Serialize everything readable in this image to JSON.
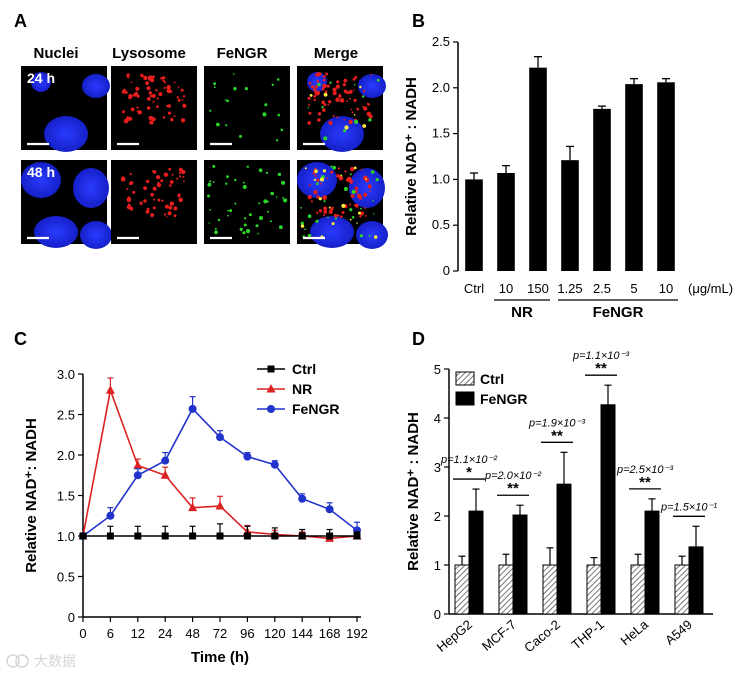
{
  "panels": {
    "a": {
      "letter": "A",
      "column_headers": [
        "Nuclei",
        "Lysosome",
        "FeNGR",
        "Merge"
      ],
      "row_labels": [
        "24 h",
        "48 h"
      ]
    },
    "b": {
      "letter": "B"
    },
    "c": {
      "letter": "C"
    },
    "d": {
      "letter": "D"
    }
  },
  "watermark": "大数据",
  "chart_data": [
    {
      "panel": "B",
      "type": "bar",
      "ylabel": "Relative NAD⁺ : NADH",
      "ylim": [
        0,
        2.5
      ],
      "yticks": [
        "0",
        "0.5",
        "1.0",
        "1.5",
        "2.0",
        "2.5"
      ],
      "categories": [
        "Ctrl",
        "10",
        "150",
        "1.25",
        "2.5",
        "5",
        "10"
      ],
      "values": [
        1.0,
        1.07,
        2.22,
        1.21,
        1.77,
        2.04,
        2.06
      ],
      "errors": [
        0.07,
        0.08,
        0.12,
        0.15,
        0.03,
        0.06,
        0.04
      ],
      "unit_label": "(μg/mL)",
      "groups": [
        {
          "label": "NR",
          "from": 1,
          "to": 2
        },
        {
          "label": "FeNGR",
          "from": 3,
          "to": 6
        }
      ]
    },
    {
      "panel": "C",
      "type": "line",
      "xlabel": "Time (h)",
      "ylabel": "Relative NAD⁺: NADH",
      "ylim": [
        0,
        3.0
      ],
      "yticks": [
        "0",
        "0.5",
        "1.0",
        "1.5",
        "2.0",
        "2.5",
        "3.0"
      ],
      "x": [
        "0",
        "6",
        "12",
        "24",
        "48",
        "72",
        "96",
        "120",
        "144",
        "168",
        "192"
      ],
      "series": [
        {
          "name": "Ctrl",
          "color": "#000000",
          "marker": "square",
          "values": [
            1.0,
            1.0,
            1.0,
            1.0,
            1.0,
            1.0,
            1.0,
            1.0,
            1.0,
            1.0,
            1.0
          ],
          "errors": [
            0.03,
            0.12,
            0.12,
            0.12,
            0.12,
            0.15,
            0.12,
            0.1,
            0.08,
            0.08,
            0.05
          ]
        },
        {
          "name": "NR",
          "color": "#dd2222",
          "marker": "triangle",
          "values": [
            1.0,
            2.8,
            1.87,
            1.75,
            1.35,
            1.37,
            1.05,
            1.02,
            1.0,
            0.97,
            1.0
          ],
          "errors": [
            0.03,
            0.15,
            0.08,
            0.1,
            0.12,
            0.12,
            0.08,
            0.05,
            0.05,
            0.05,
            0.05
          ]
        },
        {
          "name": "FeNGR",
          "color": "#2233cc",
          "marker": "circle",
          "values": [
            1.0,
            1.25,
            1.75,
            1.93,
            2.57,
            2.22,
            1.98,
            1.88,
            1.46,
            1.33,
            1.07
          ],
          "errors": [
            0.03,
            0.1,
            0.08,
            0.1,
            0.15,
            0.08,
            0.05,
            0.05,
            0.06,
            0.08,
            0.1
          ]
        }
      ],
      "legend": "top-right"
    },
    {
      "panel": "D",
      "type": "bar",
      "ylabel": "Relative NAD⁺ : NADH",
      "ylim": [
        0,
        5
      ],
      "yticks": [
        "0",
        "1",
        "2",
        "3",
        "4",
        "5"
      ],
      "categories": [
        "HepG2",
        "MCF-7",
        "Caco-2",
        "THP-1",
        "HeLa",
        "A549"
      ],
      "series": [
        {
          "name": "Ctrl",
          "pattern": "hatched",
          "values": [
            1.0,
            1.0,
            1.0,
            1.0,
            1.0,
            1.0
          ],
          "errors": [
            0.18,
            0.22,
            0.35,
            0.15,
            0.22,
            0.18
          ]
        },
        {
          "name": "FeNGR",
          "pattern": "solid",
          "values": [
            2.1,
            2.02,
            2.65,
            4.27,
            2.1,
            1.37
          ],
          "errors": [
            0.45,
            0.2,
            0.65,
            0.4,
            0.25,
            0.42
          ]
        }
      ],
      "annotations": [
        {
          "p": "p=1.1×10⁻²",
          "stars": "*"
        },
        {
          "p": "p=2.0×10⁻²",
          "stars": "**"
        },
        {
          "p": "p=1.9×10⁻³",
          "stars": "**"
        },
        {
          "p": "p=1.1×10⁻³",
          "stars": "**"
        },
        {
          "p": "p=2.5×10⁻³",
          "stars": "**"
        },
        {
          "p": "p=1.5×10⁻¹",
          "stars": ""
        }
      ],
      "legend": "top-left"
    }
  ]
}
